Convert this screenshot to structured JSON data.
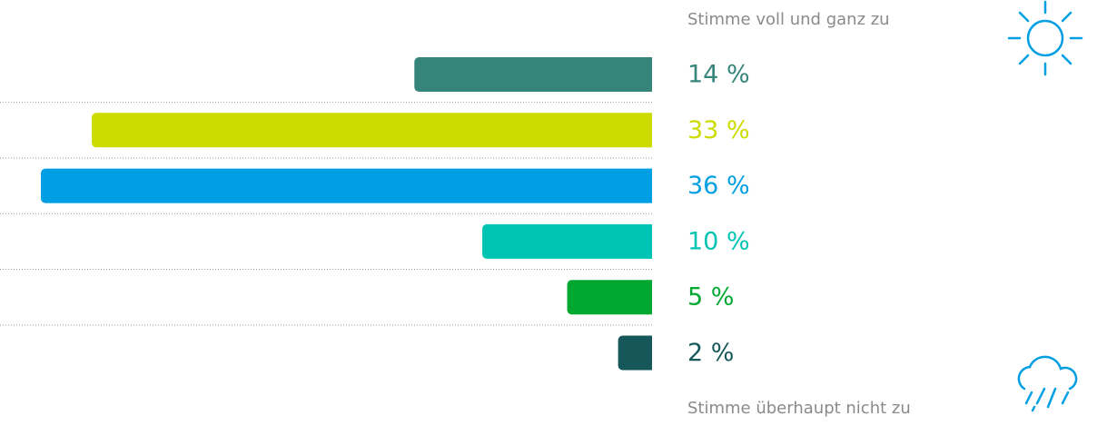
{
  "chart_data": {
    "type": "bar",
    "orientation": "horizontal",
    "top_label": "Stimme voll und ganz zu",
    "bottom_label": "Stimme überhaupt nicht zu",
    "values": [
      14,
      33,
      36,
      10,
      5,
      2
    ],
    "value_labels": [
      "14 %",
      "33 %",
      "36 %",
      "10 %",
      "5 %",
      "2 %"
    ],
    "colors": [
      "#35857a",
      "#cddc00",
      "#009fe3",
      "#00c4b3",
      "#00a832",
      "#16585a"
    ]
  }
}
